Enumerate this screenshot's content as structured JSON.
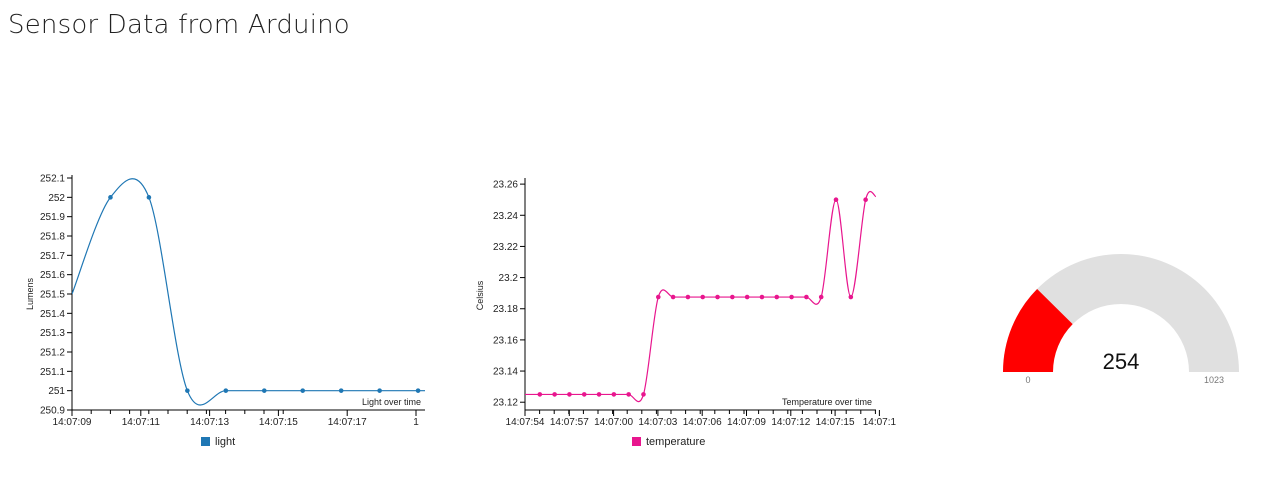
{
  "page": {
    "title": "Sensor Data from Arduino"
  },
  "chart_data": [
    {
      "type": "line",
      "ylabel": "Lumens",
      "annotation": "Light over time",
      "legend": "bottom",
      "x_tick_labels": [
        "14:07:09",
        "14:07:11",
        "14:07:13",
        "14:07:15",
        "14:07:17",
        "1"
      ],
      "y_ticks": [
        250.9,
        251,
        251.1,
        251.2,
        251.3,
        251.4,
        251.5,
        251.6,
        251.7,
        251.8,
        251.9,
        252,
        252.1
      ],
      "ylim": [
        250.9,
        252.1
      ],
      "series": [
        {
          "name": "light",
          "color": "#1f77b4",
          "x": [
            "14:07:09",
            "14:07:10",
            "14:07:11",
            "14:07:12",
            "14:07:13",
            "14:07:14",
            "14:07:15",
            "14:07:16",
            "14:07:17",
            "14:07:18",
            "14:07:19"
          ],
          "values": [
            251.5,
            252,
            252,
            251,
            251,
            251,
            251,
            251,
            251,
            251,
            251
          ]
        }
      ]
    },
    {
      "type": "line",
      "ylabel": "Celsius",
      "annotation": "Temperature over time",
      "legend": "bottom",
      "x_tick_labels": [
        "14:07:54",
        "14:07:57",
        "14:07:00",
        "14:07:03",
        "14:07:06",
        "14:07:09",
        "14:07:12",
        "14:07:15",
        "14:07:1"
      ],
      "y_ticks": [
        23.12,
        23.14,
        23.16,
        23.18,
        23.2,
        23.22,
        23.24,
        23.26
      ],
      "ylim": [
        23.115,
        23.262
      ],
      "series": [
        {
          "name": "temperature",
          "color": "#e8168e",
          "values": [
            23.125,
            23.125,
            23.125,
            23.125,
            23.125,
            23.125,
            23.125,
            23.125,
            23.125,
            23.1875,
            23.1875,
            23.1875,
            23.1875,
            23.1875,
            23.1875,
            23.1875,
            23.1875,
            23.1875,
            23.1875,
            23.1875,
            23.1875,
            23.25,
            23.1875,
            23.25
          ]
        }
      ]
    },
    {
      "type": "gauge",
      "value": 254,
      "min": 0,
      "max": 1023,
      "value_label": "254",
      "min_label": "0",
      "max_label": "1023",
      "fill_color": "#ff0000",
      "track_color": "#e0e0e0"
    }
  ]
}
